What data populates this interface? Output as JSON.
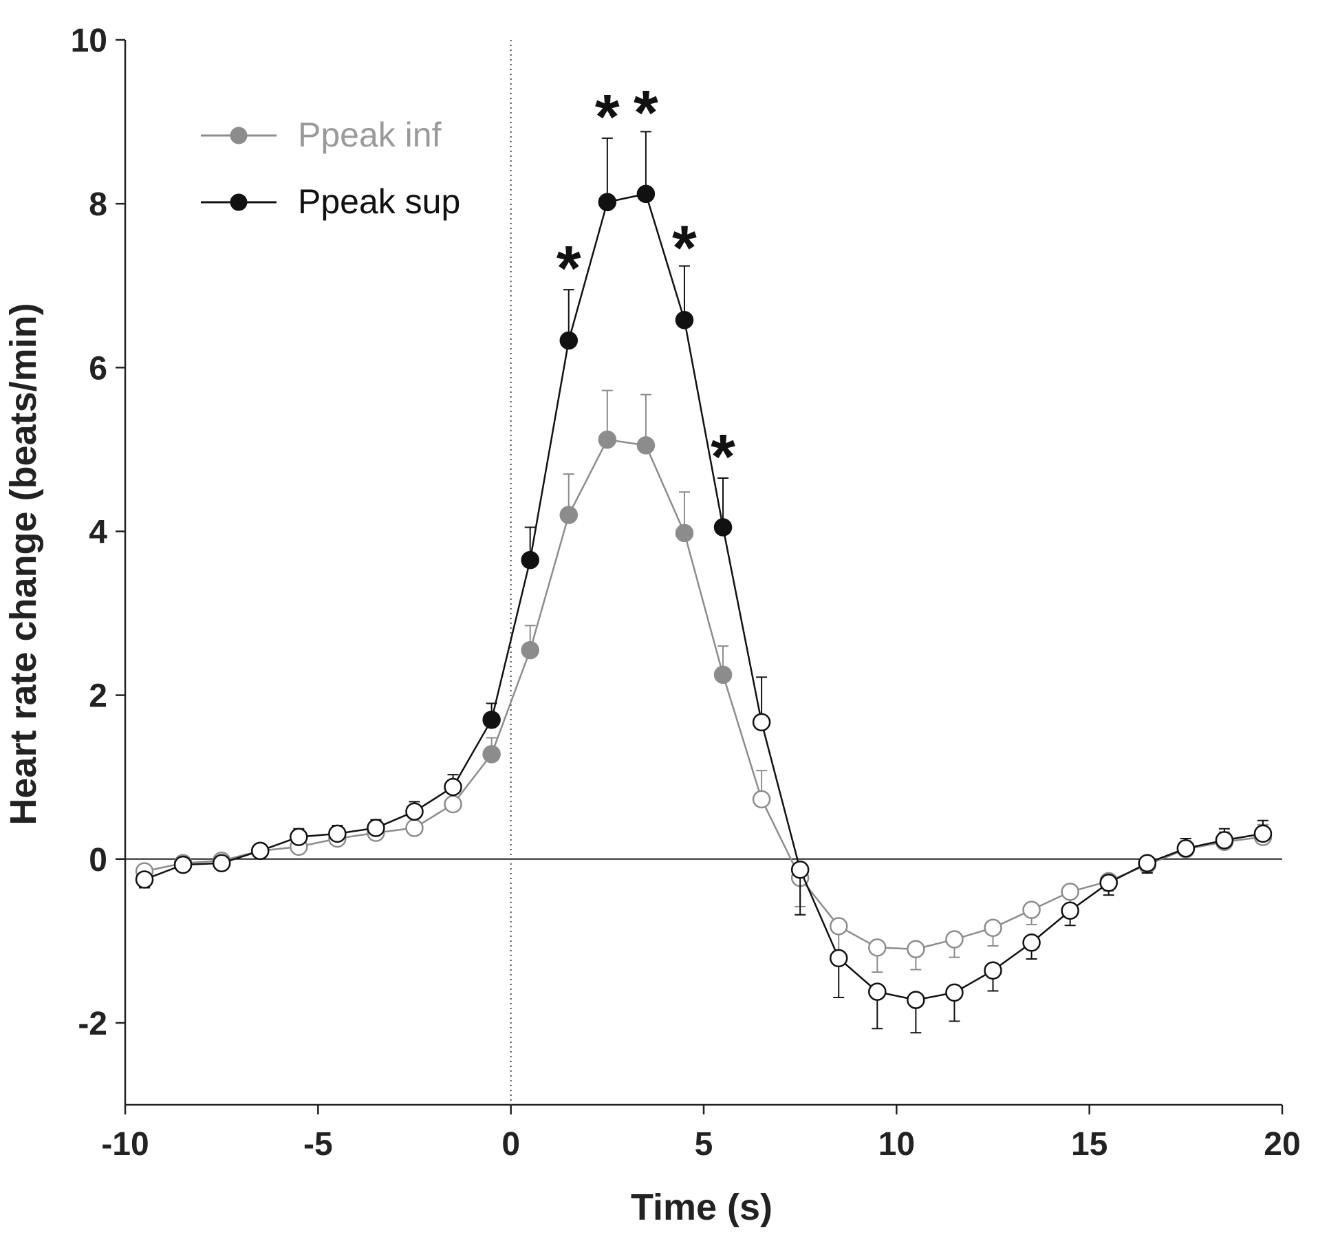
{
  "chart_data": {
    "type": "line",
    "title": "",
    "xlabel": "Time (s)",
    "ylabel": "Heart rate change (beats/min)",
    "xlim": [
      -10,
      20
    ],
    "ylim": [
      -3,
      10
    ],
    "xticks": [
      -10,
      -5,
      0,
      5,
      10,
      15,
      20
    ],
    "xtick_labels": [
      "-10",
      "-5",
      "0",
      "5",
      "10",
      "15",
      "20"
    ],
    "yticks": [
      -2,
      0,
      2,
      4,
      6,
      8,
      10
    ],
    "ytick_labels": [
      "-2",
      "0",
      "2",
      "4",
      "6",
      "8",
      "10"
    ],
    "grid": false,
    "zero_line": 0,
    "event_line_x": 0,
    "legend_position": "top-left",
    "colors": {
      "ppeak_inf": "#8c8c8c",
      "ppeak_inf_legend_text": "#9a9a9a",
      "ppeak_sup": "#111111",
      "open_marker_fill": "#ffffff"
    },
    "x": [
      -9.5,
      -8.5,
      -7.5,
      -6.5,
      -5.5,
      -4.5,
      -3.5,
      -2.5,
      -1.5,
      -0.5,
      0.5,
      1.5,
      2.5,
      3.5,
      4.5,
      5.5,
      6.5,
      7.5,
      8.5,
      9.5,
      10.5,
      11.5,
      12.5,
      13.5,
      14.5,
      15.5,
      16.5,
      17.5,
      18.5,
      19.5
    ],
    "series": [
      {
        "name": "Ppeak inf",
        "key": "ppeak_inf",
        "values": [
          -0.15,
          -0.05,
          -0.02,
          0.1,
          0.15,
          0.25,
          0.32,
          0.38,
          0.67,
          1.28,
          2.55,
          4.2,
          5.12,
          5.05,
          3.98,
          2.25,
          0.73,
          -0.23,
          -0.82,
          -1.08,
          -1.1,
          -0.98,
          -0.84,
          -0.62,
          -0.4,
          -0.27,
          -0.07,
          0.12,
          0.21,
          0.27
        ],
        "errors": [
          0.1,
          0.08,
          0.07,
          0.08,
          0.1,
          0.1,
          0.1,
          0.12,
          0.15,
          0.2,
          0.3,
          0.5,
          0.6,
          0.62,
          0.5,
          0.35,
          0.35,
          0.35,
          0.33,
          0.3,
          0.25,
          0.22,
          0.22,
          0.18,
          0.15,
          0.12,
          0.1,
          0.1,
          0.12,
          0.15
        ],
        "filled": [
          false,
          false,
          false,
          false,
          false,
          false,
          false,
          false,
          false,
          true,
          true,
          true,
          true,
          true,
          true,
          true,
          false,
          false,
          false,
          false,
          false,
          false,
          false,
          false,
          false,
          false,
          false,
          false,
          false,
          false
        ]
      },
      {
        "name": "Ppeak sup",
        "key": "ppeak_sup",
        "values": [
          -0.25,
          -0.07,
          -0.05,
          0.1,
          0.27,
          0.31,
          0.38,
          0.58,
          0.88,
          1.7,
          3.65,
          6.33,
          8.02,
          8.12,
          6.58,
          4.05,
          1.67,
          -0.13,
          -1.21,
          -1.62,
          -1.72,
          -1.63,
          -1.36,
          -1.02,
          -0.63,
          -0.29,
          -0.05,
          0.13,
          0.23,
          0.31
        ],
        "errors": [
          0.1,
          0.08,
          0.07,
          0.08,
          0.1,
          0.1,
          0.1,
          0.12,
          0.15,
          0.2,
          0.4,
          0.62,
          0.78,
          0.76,
          0.66,
          0.6,
          0.55,
          0.55,
          0.48,
          0.45,
          0.4,
          0.35,
          0.25,
          0.2,
          0.18,
          0.15,
          0.12,
          0.12,
          0.14,
          0.16
        ],
        "filled": [
          false,
          false,
          false,
          false,
          false,
          false,
          false,
          false,
          false,
          true,
          true,
          true,
          true,
          true,
          true,
          true,
          false,
          false,
          false,
          false,
          false,
          false,
          false,
          false,
          false,
          false,
          false,
          false,
          false,
          false
        ]
      }
    ],
    "annotations": [
      {
        "text": "*",
        "x": 1.5,
        "y": 7.35
      },
      {
        "text": "*",
        "x": 2.5,
        "y": 9.2
      },
      {
        "text": "*",
        "x": 3.5,
        "y": 9.25
      },
      {
        "text": "*",
        "x": 4.5,
        "y": 7.6
      },
      {
        "text": "*",
        "x": 5.5,
        "y": 5.05
      }
    ]
  }
}
